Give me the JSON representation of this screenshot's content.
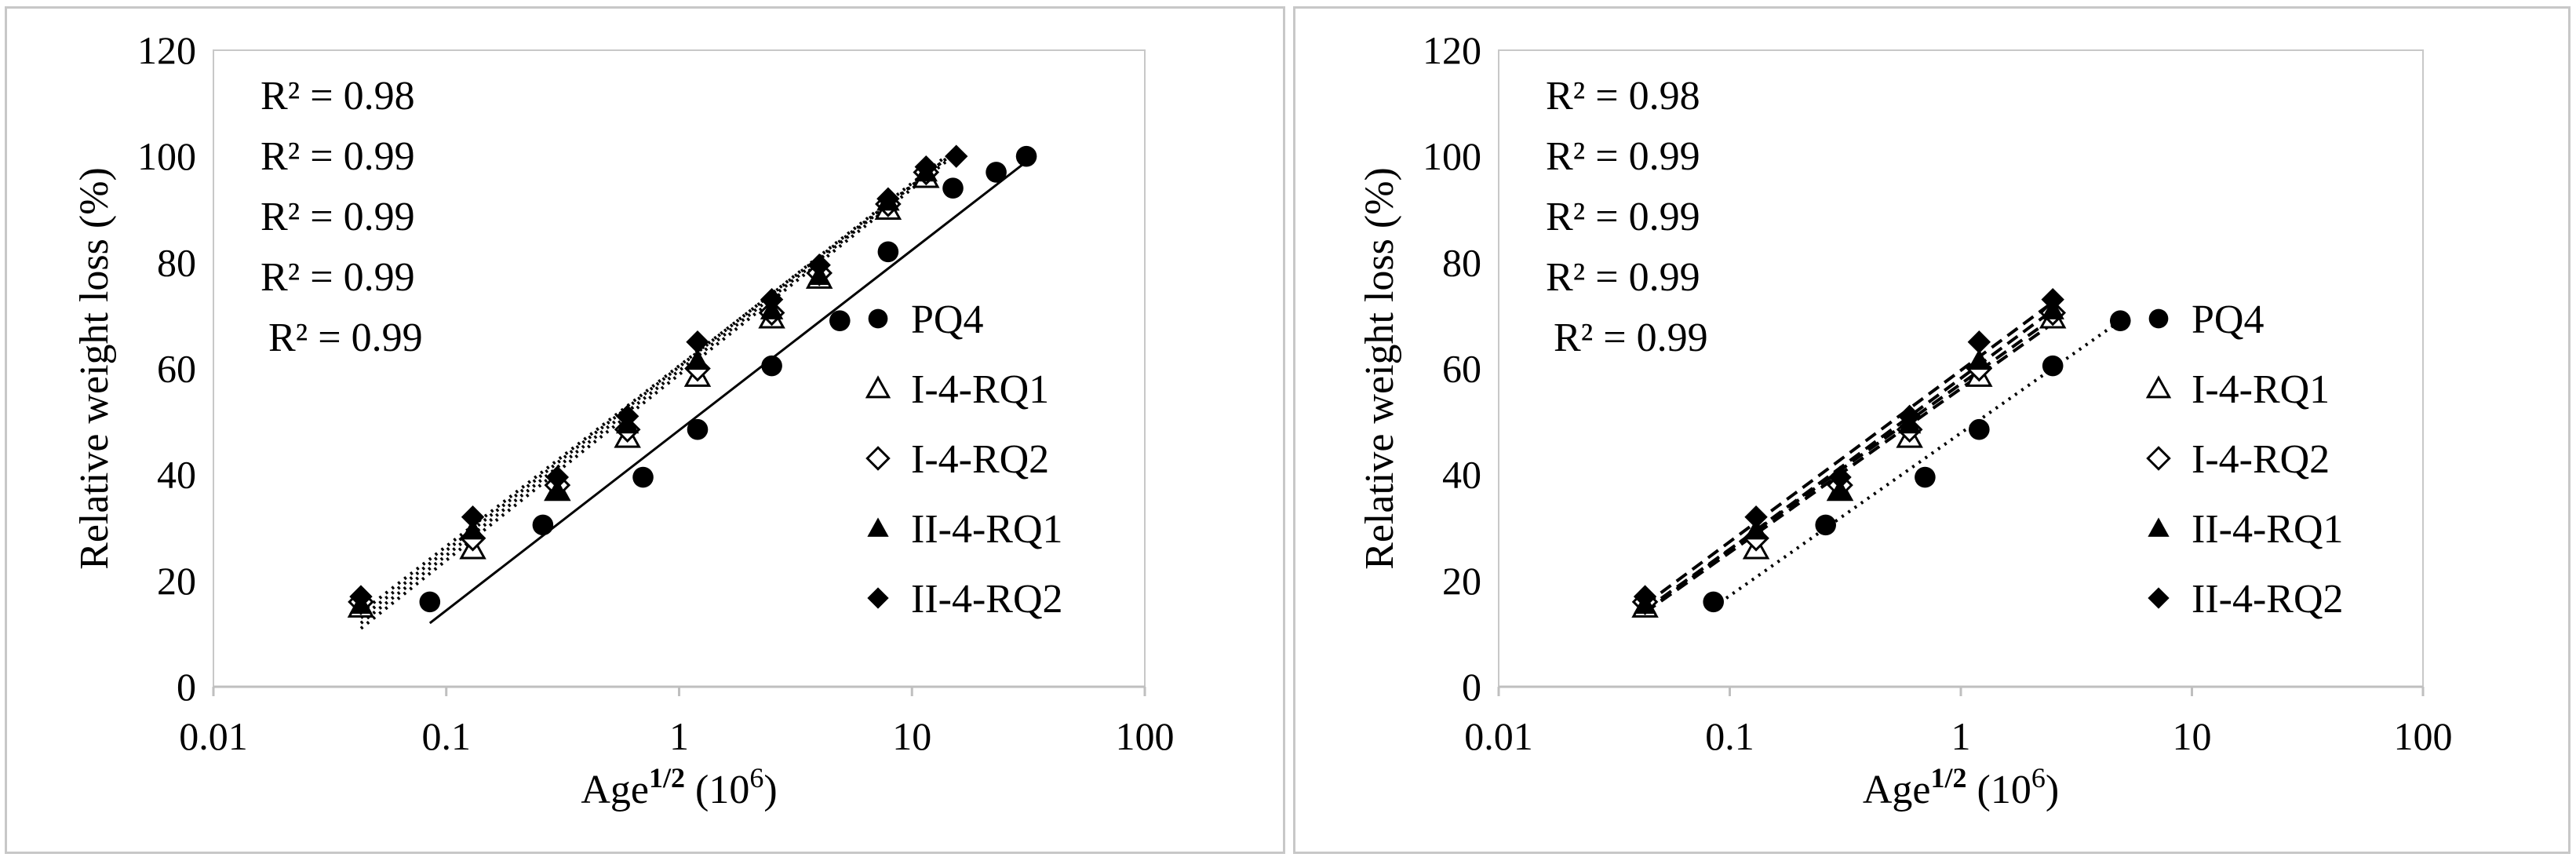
{
  "chart_data": [
    {
      "type": "scatter",
      "x_scale": "log",
      "xlabel": {
        "base": "Age",
        "sup": "1/2",
        "unit": " (10",
        "unit_sup": "6",
        "unit_end": ")"
      },
      "ylabel": "Relative weight loss (%)",
      "xlim": [
        0.01,
        100
      ],
      "ylim": [
        0,
        120
      ],
      "x_ticks": [
        0.01,
        0.1,
        1,
        10,
        100
      ],
      "x_tick_labels": [
        "0.01",
        "0.1",
        "1",
        "10",
        "100"
      ],
      "y_ticks": [
        0,
        20,
        40,
        60,
        80,
        100,
        120
      ],
      "y_tick_labels": [
        "0",
        "20",
        "40",
        "60",
        "80",
        "100",
        "120"
      ],
      "r2_labels": [
        "R² = 0.98",
        "R² = 0.99",
        "R² = 0.99",
        "R² = 0.99",
        "R² = 0.99"
      ],
      "series": [
        {
          "name": "PQ4",
          "marker": "circle",
          "line": "solid",
          "x": [
            0.085,
            0.26,
            0.7,
            1.2,
            2.5,
            4.9,
            7.9,
            15,
            23,
            31
          ],
          "y": [
            16,
            30.5,
            39.5,
            48.5,
            60.5,
            69,
            82,
            94,
            97,
            100
          ],
          "fit": {
            "x": [
              0.085,
              31
            ],
            "y": [
              12,
              99
            ]
          }
        },
        {
          "name": "I-4-RQ1",
          "marker": "triangle-open",
          "line": "dotted",
          "x": [
            0.043,
            0.13,
            0.3,
            0.6,
            1.2,
            2.5,
            4,
            7.9,
            11.5
          ],
          "y": [
            15,
            26,
            37,
            47,
            58.5,
            69.5,
            77,
            90,
            96
          ],
          "fit": {
            "x": [
              0.043,
              14
            ],
            "y": [
              11,
              99
            ]
          }
        },
        {
          "name": "I-4-RQ2",
          "marker": "diamond-open",
          "line": "dotted",
          "x": [
            0.043,
            0.13,
            0.3,
            0.6,
            1.2,
            2.5,
            4,
            7.9,
            11.5
          ],
          "y": [
            16,
            28,
            38,
            48.5,
            60,
            70.5,
            78,
            91,
            97
          ],
          "fit": {
            "x": [
              0.043,
              14
            ],
            "y": [
              12,
              99.5
            ]
          }
        },
        {
          "name": "II-4-RQ1",
          "marker": "triangle",
          "line": "dotted",
          "x": [
            0.043,
            0.13,
            0.3,
            0.6,
            1.2,
            2.5,
            4,
            7.9,
            11.5
          ],
          "y": [
            15.5,
            29.5,
            37,
            49.5,
            61.5,
            71,
            77.5,
            91.5,
            97
          ],
          "fit": {
            "x": [
              0.043,
              14
            ],
            "y": [
              13,
              100
            ]
          }
        },
        {
          "name": "II-4-RQ2",
          "marker": "diamond",
          "line": "dotted",
          "x": [
            0.043,
            0.13,
            0.3,
            0.6,
            1.2,
            2.5,
            4,
            7.9,
            11.5,
            15.5
          ],
          "y": [
            17,
            32,
            39.5,
            51,
            65,
            73,
            79.5,
            92,
            98,
            100
          ],
          "fit": {
            "x": [
              0.043,
              15.5
            ],
            "y": [
              14,
              101
            ]
          }
        }
      ],
      "legend": [
        "PQ4",
        "I-4-RQ1",
        "I-4-RQ2",
        "II-4-RQ1",
        "II-4-RQ2"
      ]
    },
    {
      "type": "scatter",
      "x_scale": "log",
      "xlabel": {
        "base": "Age",
        "sup": "1/2",
        "unit": " (10",
        "unit_sup": "6",
        "unit_end": ")"
      },
      "ylabel": "Relative weight loss (%)",
      "xlim": [
        0.01,
        100
      ],
      "ylim": [
        0,
        120
      ],
      "x_ticks": [
        0.01,
        0.1,
        1,
        10,
        100
      ],
      "x_tick_labels": [
        "0.01",
        "0.1",
        "1",
        "10",
        "100"
      ],
      "y_ticks": [
        0,
        20,
        40,
        60,
        80,
        100,
        120
      ],
      "y_tick_labels": [
        "0",
        "20",
        "40",
        "60",
        "80",
        "100",
        "120"
      ],
      "r2_labels": [
        "R² = 0.98",
        "R² = 0.99",
        "R² = 0.99",
        "R² = 0.99",
        "R² = 0.99"
      ],
      "series": [
        {
          "name": "PQ4",
          "marker": "circle",
          "line": "dotted",
          "x": [
            0.085,
            0.26,
            0.7,
            1.2,
            2.5,
            4.9
          ],
          "y": [
            16,
            30.5,
            39.5,
            48.5,
            60.5,
            69
          ],
          "fit": {
            "x": [
              0.085,
              4.9
            ],
            "y": [
              15,
              69
            ]
          }
        },
        {
          "name": "I-4-RQ1",
          "marker": "triangle-open",
          "line": "dashed",
          "x": [
            0.043,
            0.13,
            0.3,
            0.6,
            1.2,
            2.5
          ],
          "y": [
            15,
            26,
            37,
            47,
            58.5,
            69.5
          ],
          "fit": {
            "x": [
              0.043,
              2.5
            ],
            "y": [
              14,
              68.5
            ]
          }
        },
        {
          "name": "I-4-RQ2",
          "marker": "diamond-open",
          "line": "dashed",
          "x": [
            0.043,
            0.13,
            0.3,
            0.6,
            1.2,
            2.5
          ],
          "y": [
            16,
            28,
            38,
            48.5,
            60,
            70.5
          ],
          "fit": {
            "x": [
              0.043,
              2.5
            ],
            "y": [
              14.5,
              69.5
            ]
          }
        },
        {
          "name": "II-4-RQ1",
          "marker": "triangle",
          "line": "dashed",
          "x": [
            0.043,
            0.13,
            0.3,
            0.6,
            1.2,
            2.5
          ],
          "y": [
            15.5,
            29.5,
            37,
            49.5,
            61.5,
            71
          ],
          "fit": {
            "x": [
              0.043,
              2.5
            ],
            "y": [
              14,
              71
            ]
          }
        },
        {
          "name": "II-4-RQ2",
          "marker": "diamond",
          "line": "dashed",
          "x": [
            0.043,
            0.13,
            0.3,
            0.6,
            1.2,
            2.5
          ],
          "y": [
            17,
            32,
            39.5,
            51,
            65,
            73
          ],
          "fit": {
            "x": [
              0.043,
              2.5
            ],
            "y": [
              15.5,
              72.5
            ]
          }
        }
      ],
      "legend": [
        "PQ4",
        "I-4-RQ1",
        "I-4-RQ2",
        "II-4-RQ1",
        "II-4-RQ2"
      ]
    }
  ]
}
